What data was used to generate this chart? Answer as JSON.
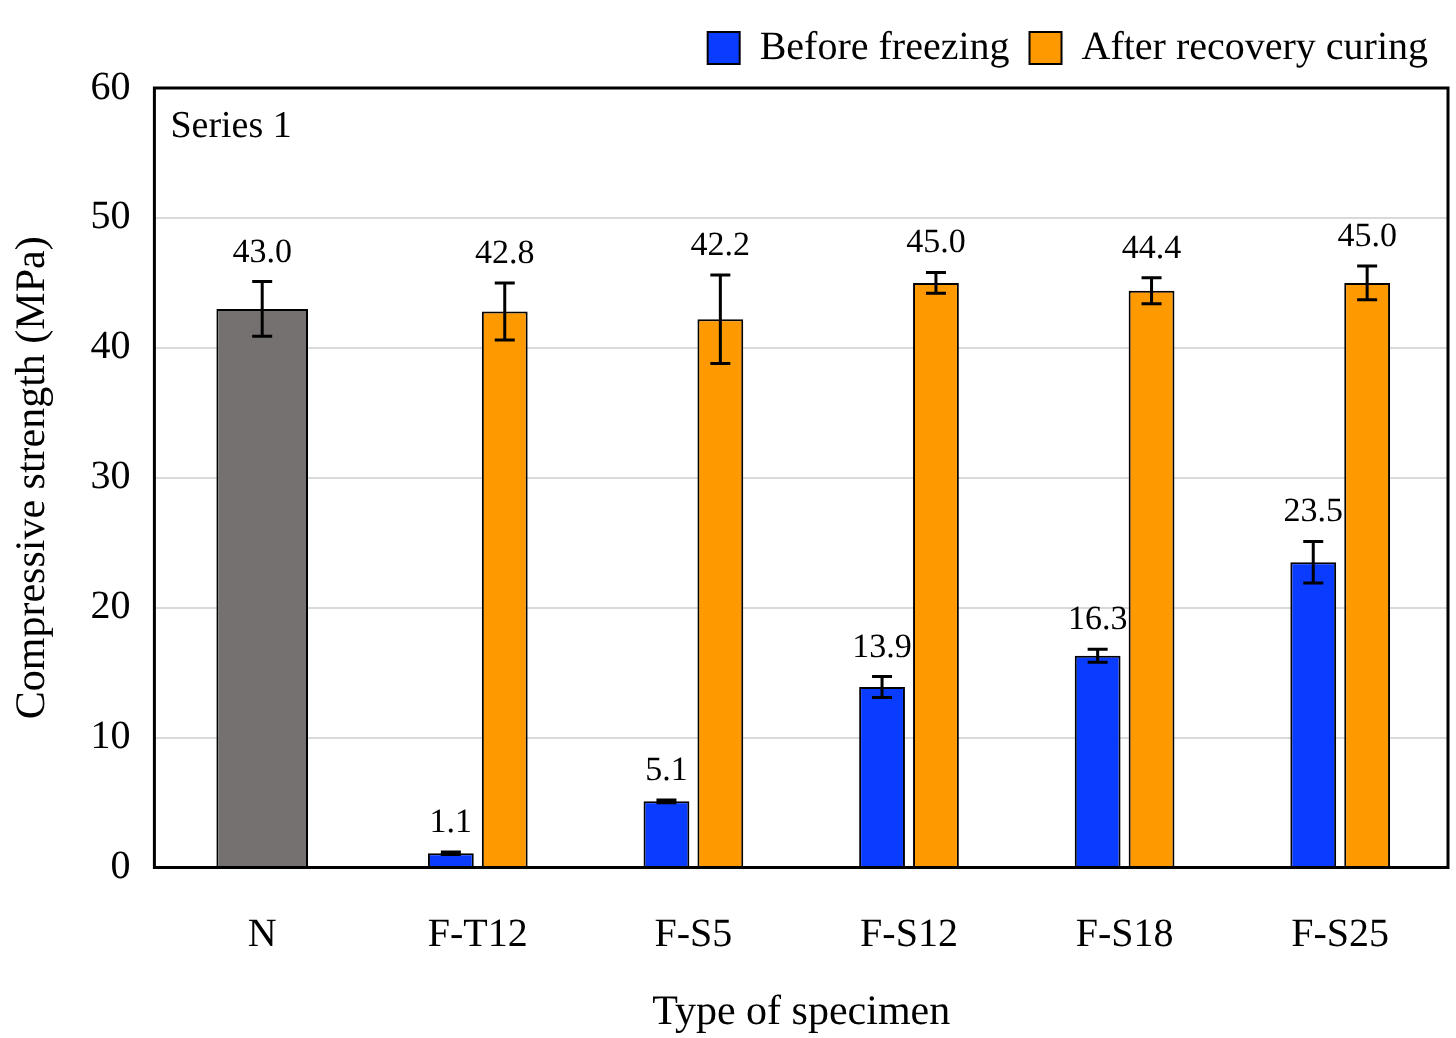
{
  "chart_data": {
    "type": "bar",
    "xlabel": "Type of specimen",
    "ylabel": "Compressive strength (MPa)",
    "categories": [
      "N",
      "F-T12",
      "F-S5",
      "F-S12",
      "F-S18",
      "F-S25"
    ],
    "series": [
      {
        "color": "#767171",
        "values": [
          43.0,
          null,
          null,
          null,
          null,
          null
        ],
        "errors": [
          2.1,
          null,
          null,
          null,
          null,
          null
        ],
        "value_labels": [
          "43.0",
          null,
          null,
          null,
          null,
          null
        ]
      },
      {
        "name": "Before freezing",
        "color": "#0a3cff",
        "values": [
          null,
          1.1,
          5.1,
          13.9,
          16.3,
          23.5
        ],
        "errors": [
          null,
          0.1,
          0.1,
          0.8,
          0.5,
          1.6
        ],
        "value_labels": [
          null,
          "1.1",
          "5.1",
          "13.9",
          "16.3",
          "23.5"
        ]
      },
      {
        "name": "After recovery curing",
        "color": "#ff9900",
        "values": [
          null,
          42.8,
          42.2,
          45.0,
          44.4,
          45.0
        ],
        "errors": [
          null,
          2.2,
          3.4,
          0.8,
          1.0,
          1.3
        ],
        "value_labels": [
          null,
          "42.8",
          "42.2",
          "45.0",
          "44.4",
          "45.0"
        ]
      }
    ],
    "ylim": [
      0,
      60
    ],
    "yticks": [
      0,
      10,
      20,
      30,
      40,
      50,
      60
    ],
    "grid": "y",
    "legend": "top right",
    "annotations": [
      "Series 1"
    ]
  }
}
